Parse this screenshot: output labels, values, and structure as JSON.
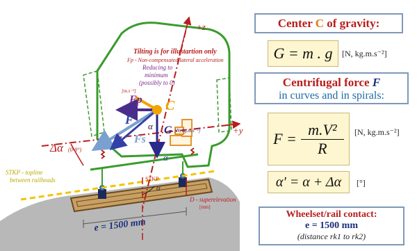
{
  "diagram": {
    "tilt_note": "Tilting is for illustartion only",
    "fp_note_1": "Fp - Non-compensated lateral acceleration",
    "fp_note_2": "Reducing to",
    "fp_note_3": "minimum",
    "fp_note_4": "(possibly to 0)",
    "fp_unit": "[m.s⁻²]",
    "label_fp": "Fp",
    "label_f": "F",
    "label_c": "C",
    "label_alpha_left": "α",
    "label_g": "G",
    "g_unit": "[N, kg.m.s⁻²]",
    "label_fs": "Fs",
    "label_alpha_bottom": "α",
    "label_z": "+z",
    "label_y": "+y",
    "delta_alpha": "Δα",
    "delta_alpha_range": "(0-8°)",
    "stkp_note_1": "STKP - topline",
    "stkp_note_2": "between railheads",
    "stkp_label": "STKP",
    "alpha_rail": "α",
    "superelevation": "D - superelevation",
    "superelevation_unit": "[mm]",
    "gauge_label": "e = 1500 mm"
  },
  "gravity": {
    "title_pre": "Center ",
    "title_letter": "C",
    "title_post": " of gravity:",
    "formula": "G = m . g",
    "unit": "[N, kg.m.s⁻²]"
  },
  "centrifugal": {
    "title_line1_pre": "Centrifugal force ",
    "title_line1_letter": "F",
    "title_line2": "in curves and in spirals:",
    "formula_lhs": "F =",
    "formula_num": "m.V²",
    "formula_den": "R",
    "unit": "[N, kg.m.s⁻²]",
    "alpha_formula": "α′ = α + Δα",
    "alpha_unit": "[°]"
  },
  "contact": {
    "title": "Wheelset/rail contact:",
    "gauge": "e = 1500 mm",
    "note": "(distance rk1 to rk2)"
  },
  "colors": {
    "body_green": "#3a9b2e",
    "axis_red": "#b81d1d",
    "fp_purple": "#7a2a8a",
    "f_blue": "#3340a8",
    "fs_lightblue": "#7aa0cf",
    "c_orange": "#f0a400",
    "track_yellow": "#f2c400",
    "panel_border": "#7f98b8"
  }
}
